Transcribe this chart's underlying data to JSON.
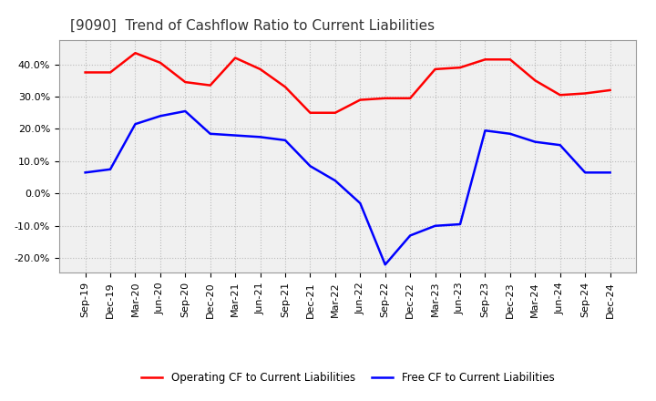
{
  "title": "[9090]  Trend of Cashflow Ratio to Current Liabilities",
  "x_labels": [
    "Sep-19",
    "Dec-19",
    "Mar-20",
    "Jun-20",
    "Sep-20",
    "Dec-20",
    "Mar-21",
    "Jun-21",
    "Sep-21",
    "Dec-21",
    "Mar-22",
    "Jun-22",
    "Sep-22",
    "Dec-22",
    "Mar-23",
    "Jun-23",
    "Sep-23",
    "Dec-23",
    "Mar-24",
    "Jun-24",
    "Sep-24",
    "Dec-24"
  ],
  "operating_cf": [
    0.375,
    0.375,
    0.435,
    0.405,
    0.345,
    0.335,
    0.42,
    0.385,
    0.33,
    0.25,
    0.25,
    0.29,
    0.295,
    0.295,
    0.385,
    0.39,
    0.415,
    0.415,
    0.35,
    0.305,
    0.31,
    0.32
  ],
  "free_cf": [
    0.065,
    0.075,
    0.215,
    0.24,
    0.255,
    0.185,
    0.18,
    0.175,
    0.165,
    0.085,
    0.04,
    -0.03,
    -0.22,
    -0.13,
    -0.1,
    -0.095,
    0.195,
    0.185,
    0.16,
    0.15,
    0.065,
    0.065
  ],
  "operating_color": "#ff0000",
  "free_color": "#0000ff",
  "background_color": "#ffffff",
  "plot_bg_color": "#f0f0f0",
  "grid_color": "#bbbbbb",
  "ylim": [
    -0.245,
    0.475
  ],
  "yticks": [
    -0.2,
    -0.1,
    0.0,
    0.1,
    0.2,
    0.3,
    0.4
  ],
  "title_fontsize": 11,
  "tick_fontsize": 8,
  "legend_labels": [
    "Operating CF to Current Liabilities",
    "Free CF to Current Liabilities"
  ]
}
